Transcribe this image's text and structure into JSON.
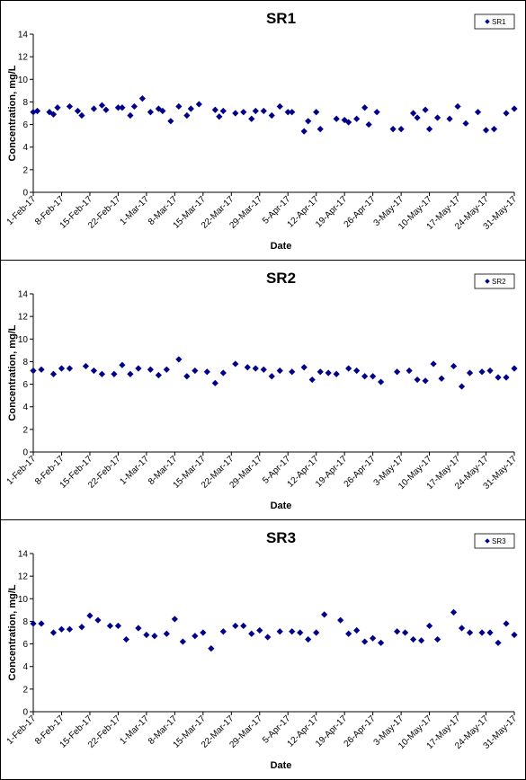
{
  "colors": {
    "marker": "#00008b",
    "axis": "#000000",
    "frame": "#000000"
  },
  "chart_data": [
    {
      "type": "scatter",
      "title": "SR1",
      "xlabel": "Date",
      "ylabel": "Concentration, mg/L",
      "ylim": [
        0,
        14
      ],
      "yticks": [
        0,
        2,
        4,
        6,
        8,
        10,
        12,
        14
      ],
      "xlim": [
        "2017-02-01",
        "2017-05-31"
      ],
      "xtick_labels": [
        "1-Feb-17",
        "8-Feb-17",
        "15-Feb-17",
        "22-Feb-17",
        "1-Mar-17",
        "8-Mar-17",
        "15-Mar-17",
        "22-Mar-17",
        "29-Mar-17",
        "5-Apr-17",
        "12-Apr-17",
        "19-Apr-17",
        "26-Apr-17",
        "3-May-17",
        "10-May-17",
        "17-May-17",
        "24-May-17",
        "31-May-17"
      ],
      "grid": false,
      "legend_position": "top-right",
      "series": [
        {
          "name": "SR1",
          "x": [
            "2017-02-01",
            "2017-02-02",
            "2017-02-05",
            "2017-02-06",
            "2017-02-07",
            "2017-02-10",
            "2017-02-12",
            "2017-02-13",
            "2017-02-16",
            "2017-02-18",
            "2017-02-19",
            "2017-02-22",
            "2017-02-23",
            "2017-02-25",
            "2017-02-26",
            "2017-02-28",
            "2017-03-02",
            "2017-03-04",
            "2017-03-05",
            "2017-03-07",
            "2017-03-09",
            "2017-03-11",
            "2017-03-12",
            "2017-03-14",
            "2017-03-18",
            "2017-03-19",
            "2017-03-20",
            "2017-03-23",
            "2017-03-25",
            "2017-03-27",
            "2017-03-28",
            "2017-03-30",
            "2017-04-01",
            "2017-04-03",
            "2017-04-05",
            "2017-04-06",
            "2017-04-09",
            "2017-04-10",
            "2017-04-12",
            "2017-04-13",
            "2017-04-17",
            "2017-04-19",
            "2017-04-20",
            "2017-04-22",
            "2017-04-24",
            "2017-04-25",
            "2017-04-27",
            "2017-05-01",
            "2017-05-03",
            "2017-05-06",
            "2017-05-07",
            "2017-05-09",
            "2017-05-10",
            "2017-05-12",
            "2017-05-15",
            "2017-05-17",
            "2017-05-19",
            "2017-05-22",
            "2017-05-24",
            "2017-05-26",
            "2017-05-29",
            "2017-05-31"
          ],
          "y": [
            7.1,
            7.2,
            7.1,
            6.9,
            7.5,
            7.6,
            7.2,
            6.8,
            7.4,
            7.7,
            7.3,
            7.5,
            7.5,
            6.8,
            7.6,
            8.3,
            7.1,
            7.4,
            7.2,
            6.3,
            7.6,
            6.8,
            7.4,
            7.8,
            7.3,
            6.7,
            7.2,
            7.0,
            7.1,
            6.5,
            7.2,
            7.2,
            6.8,
            7.6,
            7.1,
            7.1,
            5.4,
            6.3,
            7.1,
            5.6,
            6.5,
            6.4,
            6.2,
            6.5,
            7.5,
            6.0,
            7.1,
            5.6,
            5.6,
            7.0,
            6.6,
            7.3,
            5.6,
            6.6,
            6.5,
            7.6,
            6.1,
            7.1,
            5.5,
            5.6,
            7.0,
            7.4
          ]
        }
      ]
    },
    {
      "type": "scatter",
      "title": "SR2",
      "xlabel": "Date",
      "ylabel": "Concentration, mg/L",
      "ylim": [
        0,
        14
      ],
      "yticks": [
        0,
        2,
        4,
        6,
        8,
        10,
        12,
        14
      ],
      "xlim": [
        "2017-02-01",
        "2017-05-31"
      ],
      "xtick_labels": [
        "1-Feb-17",
        "8-Feb-17",
        "15-Feb-17",
        "22-Feb-17",
        "1-Mar-17",
        "8-Mar-17",
        "15-Mar-17",
        "22-Mar-17",
        "29-Mar-17",
        "5-Apr-17",
        "12-Apr-17",
        "19-Apr-17",
        "26-Apr-17",
        "3-May-17",
        "10-May-17",
        "17-May-17",
        "24-May-17",
        "31-May-17"
      ],
      "grid": false,
      "legend_position": "top-right",
      "series": [
        {
          "name": "SR2",
          "x": [
            "2017-02-01",
            "2017-02-03",
            "2017-02-06",
            "2017-02-08",
            "2017-02-10",
            "2017-02-14",
            "2017-02-16",
            "2017-02-18",
            "2017-02-21",
            "2017-02-23",
            "2017-02-25",
            "2017-02-27",
            "2017-03-02",
            "2017-03-04",
            "2017-03-06",
            "2017-03-09",
            "2017-03-11",
            "2017-03-13",
            "2017-03-16",
            "2017-03-18",
            "2017-03-20",
            "2017-03-23",
            "2017-03-26",
            "2017-03-28",
            "2017-03-30",
            "2017-04-01",
            "2017-04-03",
            "2017-04-06",
            "2017-04-09",
            "2017-04-11",
            "2017-04-13",
            "2017-04-15",
            "2017-04-17",
            "2017-04-20",
            "2017-04-22",
            "2017-04-24",
            "2017-04-26",
            "2017-04-28",
            "2017-05-02",
            "2017-05-05",
            "2017-05-07",
            "2017-05-09",
            "2017-05-11",
            "2017-05-13",
            "2017-05-16",
            "2017-05-18",
            "2017-05-20",
            "2017-05-23",
            "2017-05-25",
            "2017-05-27",
            "2017-05-29",
            "2017-05-31"
          ],
          "y": [
            7.2,
            7.3,
            6.9,
            7.4,
            7.4,
            7.6,
            7.2,
            6.9,
            6.9,
            7.7,
            6.9,
            7.4,
            7.3,
            6.8,
            7.3,
            8.2,
            6.7,
            7.2,
            7.1,
            6.1,
            7.0,
            7.8,
            7.5,
            7.4,
            7.3,
            6.7,
            7.2,
            7.1,
            7.5,
            6.4,
            7.1,
            7.0,
            6.9,
            7.4,
            7.2,
            6.7,
            6.7,
            6.2,
            7.1,
            7.2,
            6.4,
            6.3,
            7.8,
            6.5,
            7.6,
            5.8,
            7.0,
            7.1,
            7.2,
            6.6,
            6.6,
            7.4
          ]
        }
      ]
    },
    {
      "type": "scatter",
      "title": "SR3",
      "xlabel": "Date",
      "ylabel": "Concentration, mg/L",
      "ylim": [
        0,
        14
      ],
      "yticks": [
        0,
        2,
        4,
        6,
        8,
        10,
        12,
        14
      ],
      "xlim": [
        "2017-02-01",
        "2017-05-31"
      ],
      "xtick_labels": [
        "1-Feb-17",
        "8-Feb-17",
        "15-Feb-17",
        "22-Feb-17",
        "1-Mar-17",
        "8-Mar-17",
        "15-Mar-17",
        "22-Mar-17",
        "29-Mar-17",
        "5-Apr-17",
        "12-Apr-17",
        "19-Apr-17",
        "26-Apr-17",
        "3-May-17",
        "10-May-17",
        "17-May-17",
        "24-May-17",
        "31-May-17"
      ],
      "grid": false,
      "legend_position": "top-right",
      "series": [
        {
          "name": "SR3",
          "x": [
            "2017-02-01",
            "2017-02-03",
            "2017-02-06",
            "2017-02-08",
            "2017-02-10",
            "2017-02-13",
            "2017-02-15",
            "2017-02-17",
            "2017-02-20",
            "2017-02-22",
            "2017-02-24",
            "2017-02-27",
            "2017-03-01",
            "2017-03-03",
            "2017-03-06",
            "2017-03-08",
            "2017-03-10",
            "2017-03-13",
            "2017-03-15",
            "2017-03-17",
            "2017-03-20",
            "2017-03-23",
            "2017-03-25",
            "2017-03-27",
            "2017-03-29",
            "2017-03-31",
            "2017-04-03",
            "2017-04-06",
            "2017-04-08",
            "2017-04-10",
            "2017-04-12",
            "2017-04-14",
            "2017-04-18",
            "2017-04-20",
            "2017-04-22",
            "2017-04-24",
            "2017-04-26",
            "2017-04-28",
            "2017-05-02",
            "2017-05-04",
            "2017-05-06",
            "2017-05-08",
            "2017-05-10",
            "2017-05-12",
            "2017-05-16",
            "2017-05-18",
            "2017-05-20",
            "2017-05-23",
            "2017-05-25",
            "2017-05-27",
            "2017-05-29",
            "2017-05-31"
          ],
          "y": [
            7.8,
            7.8,
            7.0,
            7.3,
            7.3,
            7.5,
            8.5,
            8.1,
            7.6,
            7.6,
            6.4,
            7.4,
            6.8,
            6.7,
            6.9,
            8.2,
            6.2,
            6.7,
            7.0,
            5.6,
            7.1,
            7.6,
            7.6,
            6.9,
            7.2,
            6.6,
            7.1,
            7.1,
            7.0,
            6.4,
            7.0,
            8.6,
            8.1,
            6.9,
            7.2,
            6.2,
            6.5,
            6.1,
            7.1,
            7.0,
            6.4,
            6.3,
            7.6,
            6.4,
            8.8,
            7.4,
            7.0,
            7.0,
            7.0,
            6.1,
            7.8,
            6.8
          ]
        }
      ]
    }
  ]
}
